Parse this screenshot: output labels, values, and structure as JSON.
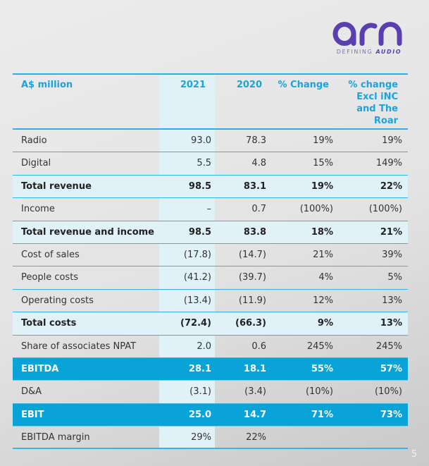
{
  "brand": {
    "logo_text": "arn",
    "tagline_a": "DEFINING",
    "tagline_b": "AUDIO",
    "color": "#5b3fb0"
  },
  "table": {
    "headers": [
      "A$ million",
      "2021",
      "2020",
      "% Change",
      "% change Excl iNC and The Roar"
    ],
    "header_lines": [
      "% change",
      "Excl iNC",
      "and The",
      "Roar"
    ],
    "rows": [
      {
        "label": "Radio",
        "v2021": "93.0",
        "v2020": "78.3",
        "chg": "19%",
        "chg_ex": "19%",
        "style": "normal"
      },
      {
        "label": "Digital",
        "v2021": "5.5",
        "v2020": "4.8",
        "chg": "15%",
        "chg_ex": "149%",
        "style": "normal"
      },
      {
        "label": "Total revenue",
        "v2021": "98.5",
        "v2020": "83.1",
        "chg": "19%",
        "chg_ex": "22%",
        "style": "total"
      },
      {
        "label": "Income",
        "v2021": "–",
        "v2020": "0.7",
        "chg": "(100%)",
        "chg_ex": "(100%)",
        "style": "normal"
      },
      {
        "label": "Total revenue and income",
        "v2021": "98.5",
        "v2020": "83.8",
        "chg": "18%",
        "chg_ex": "21%",
        "style": "total"
      },
      {
        "label": "Cost of sales",
        "v2021": "(17.8)",
        "v2020": "(14.7)",
        "chg": "21%",
        "chg_ex": "39%",
        "style": "normal"
      },
      {
        "label": "People costs",
        "v2021": "(41.2)",
        "v2020": "(39.7)",
        "chg": "4%",
        "chg_ex": "5%",
        "style": "normal"
      },
      {
        "label": "Operating costs",
        "v2021": "(13.4)",
        "v2020": "(11.9)",
        "chg": "12%",
        "chg_ex": "13%",
        "style": "normal"
      },
      {
        "label": "Total costs",
        "v2021": "(72.4)",
        "v2020": "(66.3)",
        "chg": "9%",
        "chg_ex": "13%",
        "style": "total"
      },
      {
        "label": "Share of associates NPAT",
        "v2021": "2.0",
        "v2020": "0.6",
        "chg": "245%",
        "chg_ex": "245%",
        "style": "normal"
      },
      {
        "label": "EBITDA",
        "v2021": "28.1",
        "v2020": "18.1",
        "chg": "55%",
        "chg_ex": "57%",
        "style": "band"
      },
      {
        "label": "D&A",
        "v2021": "(3.1)",
        "v2020": "(3.4)",
        "chg": "(10%)",
        "chg_ex": "(10%)",
        "style": "normal"
      },
      {
        "label": "EBIT",
        "v2021": "25.0",
        "v2020": "14.7",
        "chg": "71%",
        "chg_ex": "73%",
        "style": "band"
      },
      {
        "label": "EBITDA margin",
        "v2021": "29%",
        "v2020": "22%",
        "chg": "",
        "chg_ex": "",
        "style": "normal"
      }
    ]
  },
  "page_number": "5"
}
